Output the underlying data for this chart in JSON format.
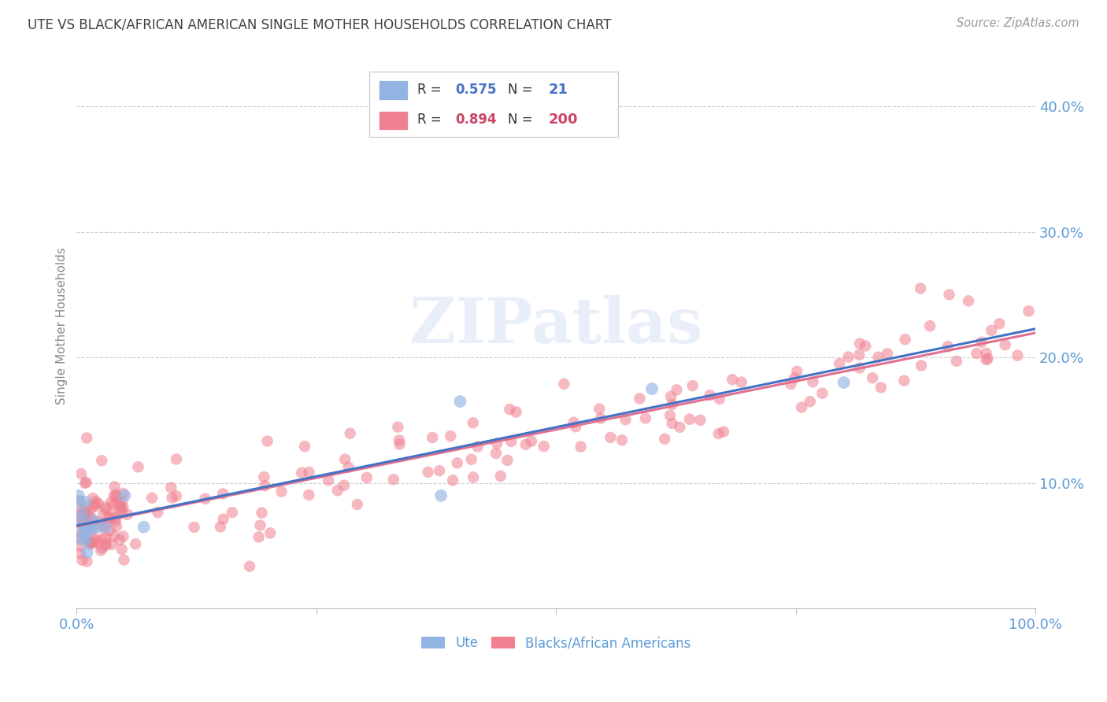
{
  "title": "UTE VS BLACK/AFRICAN AMERICAN SINGLE MOTHER HOUSEHOLDS CORRELATION CHART",
  "source": "Source: ZipAtlas.com",
  "ylabel": "Single Mother Households",
  "watermark": "ZIPatlas",
  "legend_blue_r": "R = 0.575",
  "legend_blue_n": "N =  21",
  "legend_pink_r": "R = 0.894",
  "legend_pink_n": "N = 200",
  "blue_scatter_color": "#92b4e3",
  "pink_scatter_color": "#f08090",
  "blue_line_color": "#4472c4",
  "pink_line_color": "#e07090",
  "title_color": "#404040",
  "axis_tick_color": "#5b9bd5",
  "grid_color": "#c8c8c8",
  "background_color": "#ffffff",
  "xlim": [
    0.0,
    1.0
  ],
  "ylim": [
    0.0,
    0.45
  ],
  "figsize": [
    14.06,
    8.92
  ],
  "dpi": 100
}
